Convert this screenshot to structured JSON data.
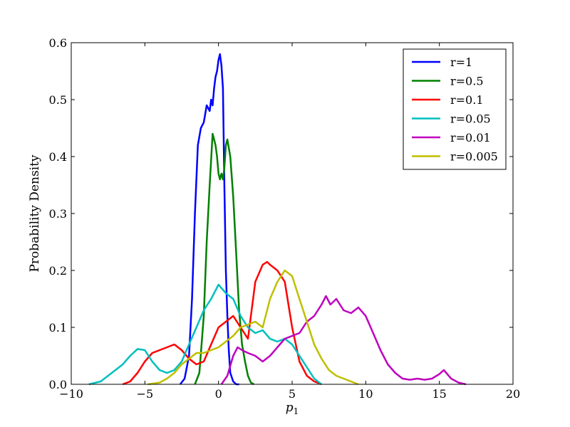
{
  "chart_data": {
    "type": "line",
    "title": "",
    "xlabel": "p",
    "xlabel_sub": "1",
    "ylabel": "Probability Density",
    "xlim": [
      -10,
      20
    ],
    "ylim": [
      0,
      0.6
    ],
    "xticks": [
      -10,
      -5,
      0,
      5,
      10,
      15,
      20
    ],
    "xtick_labels": [
      "−10",
      "−5",
      "0",
      "5",
      "10",
      "15",
      "20"
    ],
    "yticks": [
      0.0,
      0.1,
      0.2,
      0.3,
      0.4,
      0.5,
      0.6
    ],
    "ytick_labels": [
      "0.0",
      "0.1",
      "0.2",
      "0.3",
      "0.4",
      "0.5",
      "0.6"
    ],
    "grid": false,
    "legend_position": "top-right",
    "series": [
      {
        "name": "r=1",
        "color": "#0000ff",
        "x": [
          -2.6,
          -2.3,
          -2.0,
          -1.8,
          -1.6,
          -1.4,
          -1.2,
          -1.0,
          -0.8,
          -0.6,
          -0.5,
          -0.4,
          -0.3,
          -0.2,
          -0.1,
          0.0,
          0.1,
          0.2,
          0.3,
          0.4,
          0.5,
          0.6,
          0.7,
          0.8,
          1.0,
          1.2,
          1.4
        ],
        "y": [
          0.0,
          0.01,
          0.05,
          0.15,
          0.3,
          0.42,
          0.45,
          0.46,
          0.49,
          0.48,
          0.5,
          0.49,
          0.52,
          0.54,
          0.55,
          0.57,
          0.58,
          0.56,
          0.52,
          0.35,
          0.2,
          0.12,
          0.06,
          0.02,
          0.005,
          0.0,
          0.0
        ]
      },
      {
        "name": "r=0.5",
        "color": "#008000",
        "x": [
          -1.6,
          -1.3,
          -1.0,
          -0.8,
          -0.6,
          -0.4,
          -0.3,
          -0.2,
          -0.1,
          0.0,
          0.1,
          0.2,
          0.3,
          0.4,
          0.5,
          0.6,
          0.8,
          1.0,
          1.2,
          1.4,
          1.6,
          1.8,
          2.0,
          2.2,
          2.4
        ],
        "y": [
          0.0,
          0.02,
          0.12,
          0.25,
          0.35,
          0.44,
          0.43,
          0.42,
          0.4,
          0.37,
          0.36,
          0.37,
          0.36,
          0.38,
          0.42,
          0.43,
          0.4,
          0.33,
          0.23,
          0.13,
          0.07,
          0.04,
          0.015,
          0.003,
          0.0
        ]
      },
      {
        "name": "r=0.1",
        "color": "#ff0000",
        "x": [
          -6.5,
          -6.0,
          -5.5,
          -5.0,
          -4.5,
          -4.0,
          -3.5,
          -3.0,
          -2.5,
          -2.0,
          -1.5,
          -1.0,
          -0.5,
          0.0,
          0.5,
          1.0,
          1.5,
          2.0,
          2.5,
          3.0,
          3.3,
          3.5,
          4.0,
          4.5,
          5.0,
          5.5,
          6.0,
          6.5,
          7.0
        ],
        "y": [
          0.0,
          0.005,
          0.02,
          0.04,
          0.055,
          0.06,
          0.065,
          0.07,
          0.06,
          0.045,
          0.035,
          0.04,
          0.07,
          0.1,
          0.11,
          0.12,
          0.1,
          0.08,
          0.18,
          0.21,
          0.215,
          0.21,
          0.2,
          0.18,
          0.1,
          0.04,
          0.015,
          0.005,
          0.0
        ]
      },
      {
        "name": "r=0.05",
        "color": "#00bfbf",
        "x": [
          -8.8,
          -8.0,
          -7.5,
          -7.0,
          -6.5,
          -6.0,
          -5.5,
          -5.0,
          -4.5,
          -4.0,
          -3.5,
          -3.0,
          -2.5,
          -2.0,
          -1.5,
          -1.0,
          -0.5,
          0.0,
          0.5,
          1.0,
          1.5,
          2.0,
          2.5,
          3.0,
          3.5,
          4.0,
          4.5,
          5.0,
          5.5,
          6.0,
          6.5,
          7.0
        ],
        "y": [
          0.0,
          0.005,
          0.015,
          0.025,
          0.035,
          0.05,
          0.062,
          0.06,
          0.04,
          0.025,
          0.02,
          0.025,
          0.04,
          0.07,
          0.1,
          0.13,
          0.15,
          0.175,
          0.16,
          0.15,
          0.12,
          0.1,
          0.09,
          0.095,
          0.08,
          0.075,
          0.08,
          0.07,
          0.05,
          0.03,
          0.01,
          0.0
        ]
      },
      {
        "name": "r=0.01",
        "color": "#bf00bf",
        "x": [
          0.2,
          0.6,
          1.0,
          1.3,
          1.6,
          2.0,
          2.5,
          3.0,
          3.5,
          4.0,
          4.5,
          5.0,
          5.5,
          6.0,
          6.5,
          7.0,
          7.3,
          7.6,
          8.0,
          8.5,
          9.0,
          9.5,
          10.0,
          10.5,
          11.0,
          11.5,
          12.0,
          12.5,
          13.0,
          13.5,
          14.0,
          14.5,
          15.0,
          15.3,
          15.8,
          16.3,
          16.8
        ],
        "y": [
          0.0,
          0.015,
          0.05,
          0.065,
          0.06,
          0.055,
          0.05,
          0.04,
          0.05,
          0.065,
          0.08,
          0.085,
          0.09,
          0.11,
          0.12,
          0.14,
          0.155,
          0.14,
          0.15,
          0.13,
          0.125,
          0.135,
          0.12,
          0.09,
          0.06,
          0.035,
          0.02,
          0.01,
          0.008,
          0.01,
          0.008,
          0.01,
          0.018,
          0.025,
          0.01,
          0.003,
          0.0
        ]
      },
      {
        "name": "r=0.005",
        "color": "#bfbf00",
        "x": [
          -4.8,
          -4.0,
          -3.5,
          -3.0,
          -2.5,
          -2.0,
          -1.5,
          -1.0,
          -0.5,
          0.0,
          0.5,
          1.0,
          1.5,
          2.0,
          2.5,
          3.0,
          3.5,
          4.0,
          4.5,
          5.0,
          5.5,
          6.0,
          6.5,
          7.0,
          7.5,
          8.0,
          8.5,
          9.0,
          9.5
        ],
        "y": [
          0.0,
          0.003,
          0.01,
          0.02,
          0.035,
          0.045,
          0.055,
          0.055,
          0.06,
          0.065,
          0.075,
          0.085,
          0.1,
          0.105,
          0.11,
          0.1,
          0.15,
          0.18,
          0.2,
          0.19,
          0.15,
          0.11,
          0.07,
          0.045,
          0.025,
          0.015,
          0.01,
          0.005,
          0.0
        ]
      }
    ]
  }
}
